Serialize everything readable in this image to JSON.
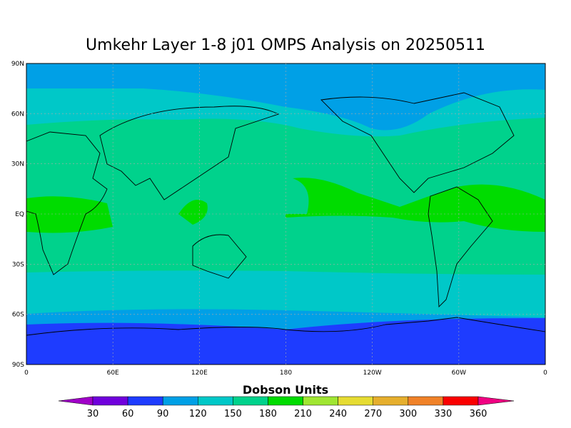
{
  "title": "Umkehr Layer 1-8 j01 OMPS Analysis on 20250511",
  "map": {
    "lat_labels": [
      "90N",
      "60N",
      "30N",
      "EQ",
      "30S",
      "60S",
      "90S"
    ],
    "lon_labels": [
      "0",
      "60E",
      "120E",
      "180",
      "120W",
      "60W",
      "0"
    ]
  },
  "colorbar": {
    "title": "Dobson Units",
    "levels": [
      30,
      60,
      90,
      120,
      150,
      180,
      210,
      240,
      270,
      300,
      330,
      360
    ],
    "colors": [
      "#a000c8",
      "#7000dc",
      "#1e3cff",
      "#00a0e6",
      "#00c8c8",
      "#00d28c",
      "#00dc00",
      "#a0e632",
      "#e6dc32",
      "#e6af2d",
      "#f08228",
      "#fa0000",
      "#f00082"
    ]
  }
}
